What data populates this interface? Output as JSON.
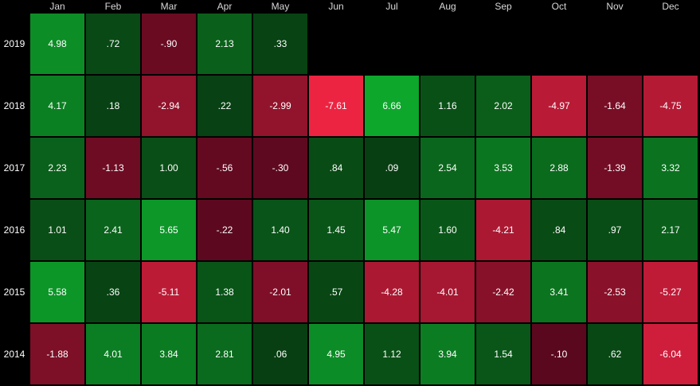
{
  "header": {
    "months": [
      "Jan",
      "Feb",
      "Mar",
      "Apr",
      "May",
      "Jun",
      "Jul",
      "Aug",
      "Sep",
      "Oct",
      "Nov",
      "Dec"
    ]
  },
  "rows": [
    {
      "year": "2019",
      "cells": [
        "4.98",
        ".72",
        "-.90",
        "2.13",
        ".33"
      ]
    },
    {
      "year": "2018",
      "cells": [
        "4.17",
        ".18",
        "-2.94",
        ".22",
        "-2.99",
        "-7.61",
        "6.66",
        "1.16",
        "2.02",
        "-4.97",
        "-1.64",
        "-4.75"
      ]
    },
    {
      "year": "2017",
      "cells": [
        "2.23",
        "-1.13",
        "1.00",
        "-.56",
        "-.30",
        ".84",
        ".09",
        "2.54",
        "3.53",
        "2.88",
        "-1.39",
        "3.32"
      ]
    },
    {
      "year": "2016",
      "cells": [
        "1.01",
        "2.41",
        "5.65",
        "-.22",
        "1.40",
        "1.45",
        "5.47",
        "1.60",
        "-4.21",
        ".84",
        ".97",
        "2.17"
      ]
    },
    {
      "year": "2015",
      "cells": [
        "5.58",
        ".36",
        "-5.11",
        "1.38",
        "-2.01",
        ".57",
        "-4.28",
        "-4.01",
        "-2.42",
        "3.41",
        "-2.53",
        "-5.27"
      ]
    },
    {
      "year": "2014",
      "cells": [
        "-1.88",
        "4.01",
        "3.84",
        "2.81",
        ".06",
        "4.95",
        "1.12",
        "3.94",
        "1.54",
        "-.10",
        ".62",
        "-6.04"
      ]
    }
  ]
}
